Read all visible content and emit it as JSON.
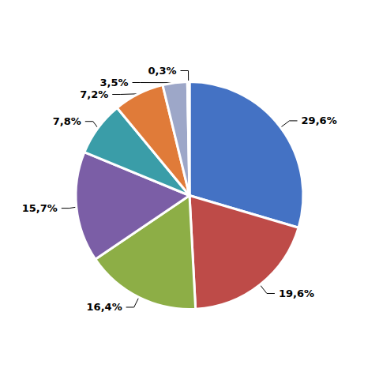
{
  "chart_data": {
    "type": "pie",
    "values": [
      29.6,
      19.6,
      16.4,
      15.7,
      7.8,
      7.2,
      3.5,
      0.3
    ],
    "value_labels": [
      "29,6%",
      "19,6%",
      "16,4%",
      "15,7%",
      "7,8%",
      "7,2%",
      "3,5%",
      "0,3%"
    ],
    "colors": [
      "#4472C4",
      "#BE4B48",
      "#8DAE46",
      "#7B5EA6",
      "#3A9DA8",
      "#E07B39",
      "#9DA7C8",
      "#D4A0A0"
    ],
    "data_labels": true,
    "legend": false
  }
}
